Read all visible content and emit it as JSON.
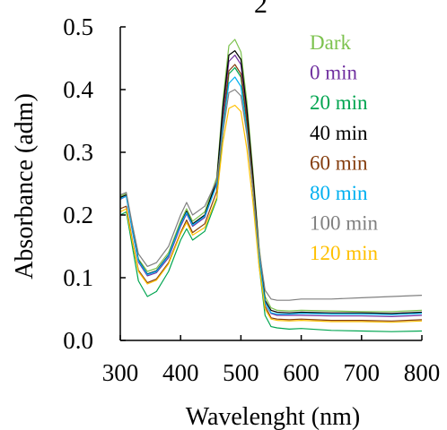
{
  "chart_data": {
    "type": "line",
    "title": "",
    "xlabel": "Wavelenght (nm)",
    "ylabel": "Absorbance (adm)",
    "xlim": [
      300,
      800
    ],
    "ylim": [
      0.0,
      0.5
    ],
    "x_ticks": [
      300,
      400,
      500,
      600,
      700,
      800
    ],
    "y_ticks": [
      0.0,
      0.1,
      0.2,
      0.3,
      0.4,
      0.5
    ],
    "x_tick_labels": [
      "300",
      "400",
      "500",
      "600",
      "700",
      "800"
    ],
    "y_tick_labels": [
      "0.0",
      "0.1",
      "0.2",
      "0.3",
      "0.4",
      "0.5"
    ],
    "grid": false,
    "legend_position": "top-right",
    "series": [
      {
        "name": "Dark",
        "color": "#7CC24E",
        "x": [
          300,
          310,
          320,
          330,
          345,
          360,
          380,
          400,
          410,
          420,
          440,
          460,
          470,
          480,
          490,
          500,
          510,
          520,
          530,
          540,
          550,
          560,
          580,
          600,
          650,
          700,
          750,
          800
        ],
        "y": [
          0.23,
          0.234,
          0.18,
          0.13,
          0.11,
          0.115,
          0.14,
          0.19,
          0.21,
          0.19,
          0.205,
          0.26,
          0.38,
          0.47,
          0.48,
          0.46,
          0.38,
          0.27,
          0.15,
          0.07,
          0.052,
          0.048,
          0.047,
          0.048,
          0.047,
          0.046,
          0.046,
          0.048
        ]
      },
      {
        "name": "0 min",
        "color": "#7030A0",
        "x": [
          300,
          310,
          320,
          330,
          345,
          360,
          380,
          400,
          410,
          420,
          440,
          460,
          470,
          480,
          490,
          500,
          510,
          520,
          530,
          540,
          550,
          560,
          580,
          600,
          650,
          700,
          750,
          800
        ],
        "y": [
          0.225,
          0.23,
          0.175,
          0.125,
          0.103,
          0.108,
          0.132,
          0.182,
          0.202,
          0.182,
          0.196,
          0.25,
          0.36,
          0.445,
          0.455,
          0.44,
          0.36,
          0.255,
          0.14,
          0.06,
          0.043,
          0.04,
          0.04,
          0.04,
          0.039,
          0.039,
          0.038,
          0.04
        ]
      },
      {
        "name": "20 min",
        "color": "#00A550",
        "x": [
          300,
          310,
          320,
          330,
          345,
          360,
          380,
          400,
          410,
          420,
          440,
          460,
          470,
          480,
          490,
          500,
          510,
          520,
          530,
          540,
          550,
          560,
          580,
          600,
          650,
          700,
          750,
          800
        ],
        "y": [
          0.2,
          0.205,
          0.15,
          0.095,
          0.07,
          0.078,
          0.11,
          0.16,
          0.178,
          0.16,
          0.174,
          0.225,
          0.33,
          0.425,
          0.435,
          0.42,
          0.345,
          0.24,
          0.12,
          0.04,
          0.022,
          0.02,
          0.018,
          0.019,
          0.016,
          0.015,
          0.014,
          0.015
        ]
      },
      {
        "name": "40 min",
        "color": "#000000",
        "x": [
          300,
          310,
          320,
          330,
          345,
          360,
          380,
          400,
          410,
          420,
          440,
          460,
          470,
          480,
          490,
          500,
          510,
          520,
          530,
          540,
          550,
          560,
          580,
          600,
          650,
          700,
          750,
          800
        ],
        "y": [
          0.228,
          0.232,
          0.178,
          0.128,
          0.106,
          0.111,
          0.136,
          0.186,
          0.206,
          0.186,
          0.2,
          0.255,
          0.37,
          0.455,
          0.462,
          0.448,
          0.368,
          0.262,
          0.145,
          0.064,
          0.048,
          0.045,
          0.044,
          0.045,
          0.044,
          0.044,
          0.043,
          0.045
        ]
      },
      {
        "name": "60 min",
        "color": "#843C0C",
        "x": [
          300,
          310,
          320,
          330,
          345,
          360,
          380,
          400,
          410,
          420,
          440,
          460,
          470,
          480,
          490,
          500,
          510,
          520,
          530,
          540,
          550,
          560,
          580,
          600,
          650,
          700,
          750,
          800
        ],
        "y": [
          0.21,
          0.214,
          0.16,
          0.112,
          0.092,
          0.098,
          0.124,
          0.172,
          0.192,
          0.172,
          0.186,
          0.238,
          0.345,
          0.43,
          0.44,
          0.425,
          0.35,
          0.248,
          0.132,
          0.055,
          0.036,
          0.034,
          0.033,
          0.034,
          0.032,
          0.032,
          0.031,
          0.033
        ]
      },
      {
        "name": "80 min",
        "color": "#00B0F0",
        "x": [
          300,
          310,
          320,
          330,
          345,
          360,
          380,
          400,
          410,
          420,
          440,
          460,
          470,
          480,
          490,
          500,
          510,
          520,
          530,
          540,
          550,
          560,
          580,
          600,
          650,
          700,
          750,
          800
        ],
        "y": [
          0.226,
          0.23,
          0.176,
          0.127,
          0.105,
          0.11,
          0.135,
          0.185,
          0.204,
          0.184,
          0.198,
          0.248,
          0.34,
          0.41,
          0.42,
          0.405,
          0.335,
          0.24,
          0.135,
          0.06,
          0.044,
          0.042,
          0.042,
          0.043,
          0.042,
          0.042,
          0.041,
          0.043
        ]
      },
      {
        "name": "100 min",
        "color": "#808080",
        "x": [
          300,
          310,
          320,
          330,
          345,
          360,
          380,
          400,
          410,
          420,
          440,
          460,
          470,
          480,
          490,
          500,
          510,
          520,
          530,
          540,
          550,
          560,
          580,
          600,
          650,
          700,
          750,
          800
        ],
        "y": [
          0.232,
          0.236,
          0.185,
          0.138,
          0.118,
          0.124,
          0.15,
          0.2,
          0.22,
          0.2,
          0.214,
          0.255,
          0.33,
          0.395,
          0.4,
          0.39,
          0.328,
          0.24,
          0.145,
          0.08,
          0.066,
          0.064,
          0.064,
          0.066,
          0.066,
          0.068,
          0.07,
          0.072
        ]
      },
      {
        "name": "120 min",
        "color": "#FFC000",
        "x": [
          300,
          310,
          320,
          330,
          345,
          360,
          380,
          400,
          410,
          420,
          440,
          460,
          470,
          480,
          490,
          500,
          510,
          520,
          530,
          540,
          550,
          560,
          580,
          600,
          650,
          700,
          750,
          800
        ],
        "y": [
          0.205,
          0.21,
          0.158,
          0.11,
          0.09,
          0.096,
          0.122,
          0.17,
          0.188,
          0.168,
          0.18,
          0.228,
          0.315,
          0.37,
          0.375,
          0.365,
          0.305,
          0.22,
          0.12,
          0.05,
          0.034,
          0.032,
          0.031,
          0.032,
          0.03,
          0.03,
          0.029,
          0.031
        ]
      }
    ]
  }
}
